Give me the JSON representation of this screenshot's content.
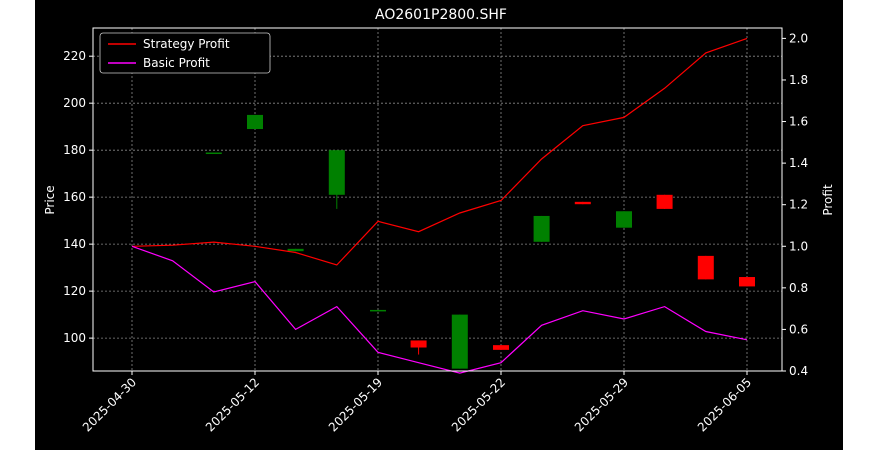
{
  "chart_data": {
    "type": "candlestick+line",
    "title": "AO2601P2800.SHF",
    "ylabel": "Price",
    "y2label": "Profit",
    "ylim": [
      86,
      232
    ],
    "y2lim": [
      0.4,
      2.05
    ],
    "yticks": [
      100,
      120,
      140,
      160,
      180,
      200,
      220
    ],
    "y2ticks": [
      "0.4",
      "0.6",
      "0.8",
      "1.0",
      "1.2",
      "1.4",
      "1.6",
      "1.8",
      "2.0"
    ],
    "xticks": [
      {
        "i": 0,
        "label": "2025-04-30"
      },
      {
        "i": 2,
        "label": "2025-05-12"
      },
      {
        "i": 4,
        "label": "2025-05-19"
      },
      {
        "i": 6,
        "label": "2025-05-22"
      },
      {
        "i": 8,
        "label": "2025-05-29"
      },
      {
        "i": 10,
        "label": "2025-06-05"
      }
    ],
    "grid": true,
    "legend": "top-left",
    "candles": [
      {
        "x": 0.66,
        "open": 214,
        "close": 213,
        "high": 214,
        "low": 213
      },
      {
        "x": 1.33,
        "open": 179,
        "close": 179,
        "high": 179,
        "low": 179
      },
      {
        "x": 2.0,
        "open": 189,
        "close": 195,
        "high": 195,
        "low": 189
      },
      {
        "x": 2.66,
        "open": 137,
        "close": 138,
        "high": 138,
        "low": 137
      },
      {
        "x": 3.33,
        "open": 161,
        "close": 180,
        "high": 180,
        "low": 155
      },
      {
        "x": 4.0,
        "open": 112,
        "close": 112,
        "high": 112,
        "low": 112
      },
      {
        "x": 4.66,
        "open": 99,
        "close": 96,
        "high": 99,
        "low": 93
      },
      {
        "x": 5.33,
        "open": 87,
        "close": 110,
        "high": 110,
        "low": 87
      },
      {
        "x": 6.0,
        "open": 97,
        "close": 95,
        "high": 97,
        "low": 95
      },
      {
        "x": 6.66,
        "open": 141,
        "close": 152,
        "high": 152,
        "low": 141
      },
      {
        "x": 7.33,
        "open": 158,
        "close": 157,
        "high": 158,
        "low": 157
      },
      {
        "x": 8.0,
        "open": 147,
        "close": 154,
        "high": 154,
        "low": 147
      },
      {
        "x": 8.66,
        "open": 161,
        "close": 155,
        "high": 161,
        "low": 155
      },
      {
        "x": 9.33,
        "open": 135,
        "close": 125,
        "high": 135,
        "low": 125
      },
      {
        "x": 10.0,
        "open": 126,
        "close": 122,
        "high": 126,
        "low": 122
      }
    ],
    "series": [
      {
        "name": "Strategy Profit",
        "color": "#ff0000",
        "x": [
          0,
          0.66,
          1.33,
          2.0,
          2.66,
          3.33,
          4.0,
          4.66,
          5.33,
          6.0,
          6.66,
          7.33,
          8.0,
          8.66,
          9.33,
          10.0
        ],
        "values": [
          1.0,
          1.005,
          1.02,
          1.0,
          0.97,
          0.91,
          1.12,
          1.07,
          1.16,
          1.22,
          1.42,
          1.58,
          1.62,
          1.76,
          1.93,
          2.0
        ]
      },
      {
        "name": "Basic Profit",
        "color": "#ff00ff",
        "x": [
          0,
          0.66,
          1.33,
          2.0,
          2.66,
          3.33,
          4.0,
          4.66,
          5.33,
          6.0,
          6.66,
          7.33,
          8.0,
          8.66,
          9.33,
          10.0
        ],
        "values": [
          1.0,
          0.93,
          0.78,
          0.83,
          0.6,
          0.71,
          0.49,
          0.44,
          0.39,
          0.44,
          0.62,
          0.69,
          0.65,
          0.71,
          0.59,
          0.55
        ]
      }
    ],
    "candle_colors": {
      "up": "#008000",
      "down": "#ff0000"
    }
  }
}
